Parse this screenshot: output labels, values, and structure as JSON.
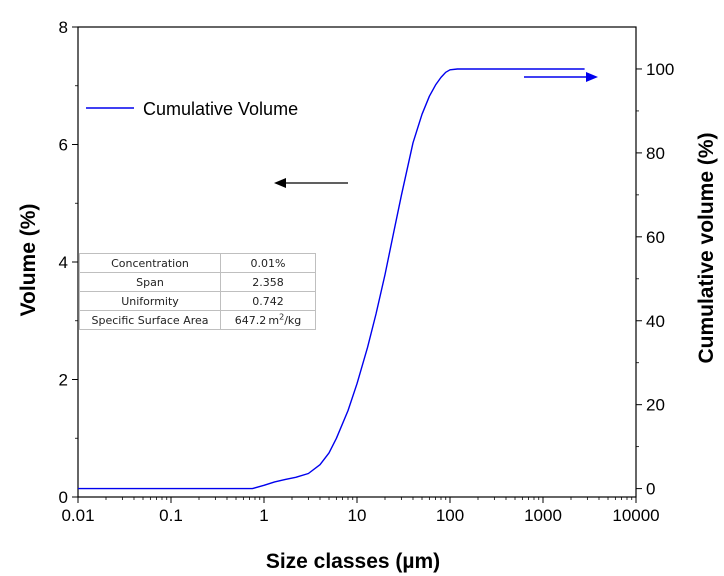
{
  "chart_data": {
    "type": "line",
    "xlabel": "Size classes (µm)",
    "ylabel": "Volume  (%)",
    "y2label": "Cumulative volume (%)",
    "xscale": "log",
    "xlim": [
      0.01,
      10000
    ],
    "ylim": [
      0,
      8
    ],
    "y2lim": [
      -2,
      110
    ],
    "x_ticks": [
      "0.01",
      "0.1",
      "1",
      "10",
      "100",
      "1000",
      "10000"
    ],
    "y_ticks": [
      "0",
      "2",
      "4",
      "6",
      "8"
    ],
    "y2_ticks": [
      "0",
      "20",
      "40",
      "60",
      "80",
      "100"
    ],
    "grid": false,
    "legend_position": "top-left",
    "series": [
      {
        "name": "Cumulative Volume",
        "axis": "right",
        "color": "#0000ee",
        "x": [
          0.01,
          0.1,
          0.5,
          0.75,
          1,
          1.3,
          1.7,
          2.2,
          3,
          4,
          5,
          6,
          8,
          10,
          13,
          16,
          20,
          25,
          30,
          40,
          50,
          60,
          70,
          80,
          90,
          100,
          120,
          200,
          1000,
          2800
        ],
        "y": [
          0,
          0,
          0,
          0,
          0.8,
          1.6,
          2.2,
          2.7,
          3.6,
          5.7,
          8.5,
          12.0,
          18.6,
          25.0,
          33.7,
          41.6,
          51.0,
          61.4,
          69.9,
          82.4,
          89.2,
          93.5,
          96.2,
          98.0,
          99.2,
          99.8,
          100,
          100,
          100,
          100
        ]
      }
    ],
    "annotations": [
      {
        "type": "arrow",
        "direction": "left",
        "color": "#000000",
        "meaning": "volume axis"
      },
      {
        "type": "arrow",
        "direction": "right",
        "color": "#0000ee",
        "meaning": "cumulative volume axis"
      }
    ]
  },
  "info_table": {
    "rows": [
      {
        "label": "Concentration",
        "value": "0.01%"
      },
      {
        "label": "Span",
        "value": "2.358"
      },
      {
        "label": "Uniformity",
        "value": "0.742"
      },
      {
        "label": "Specific Surface Area",
        "value": "647.2"
      }
    ],
    "ssa_unit_prefix": "m",
    "ssa_unit_sup": "2",
    "ssa_unit_suffix": "/kg"
  }
}
